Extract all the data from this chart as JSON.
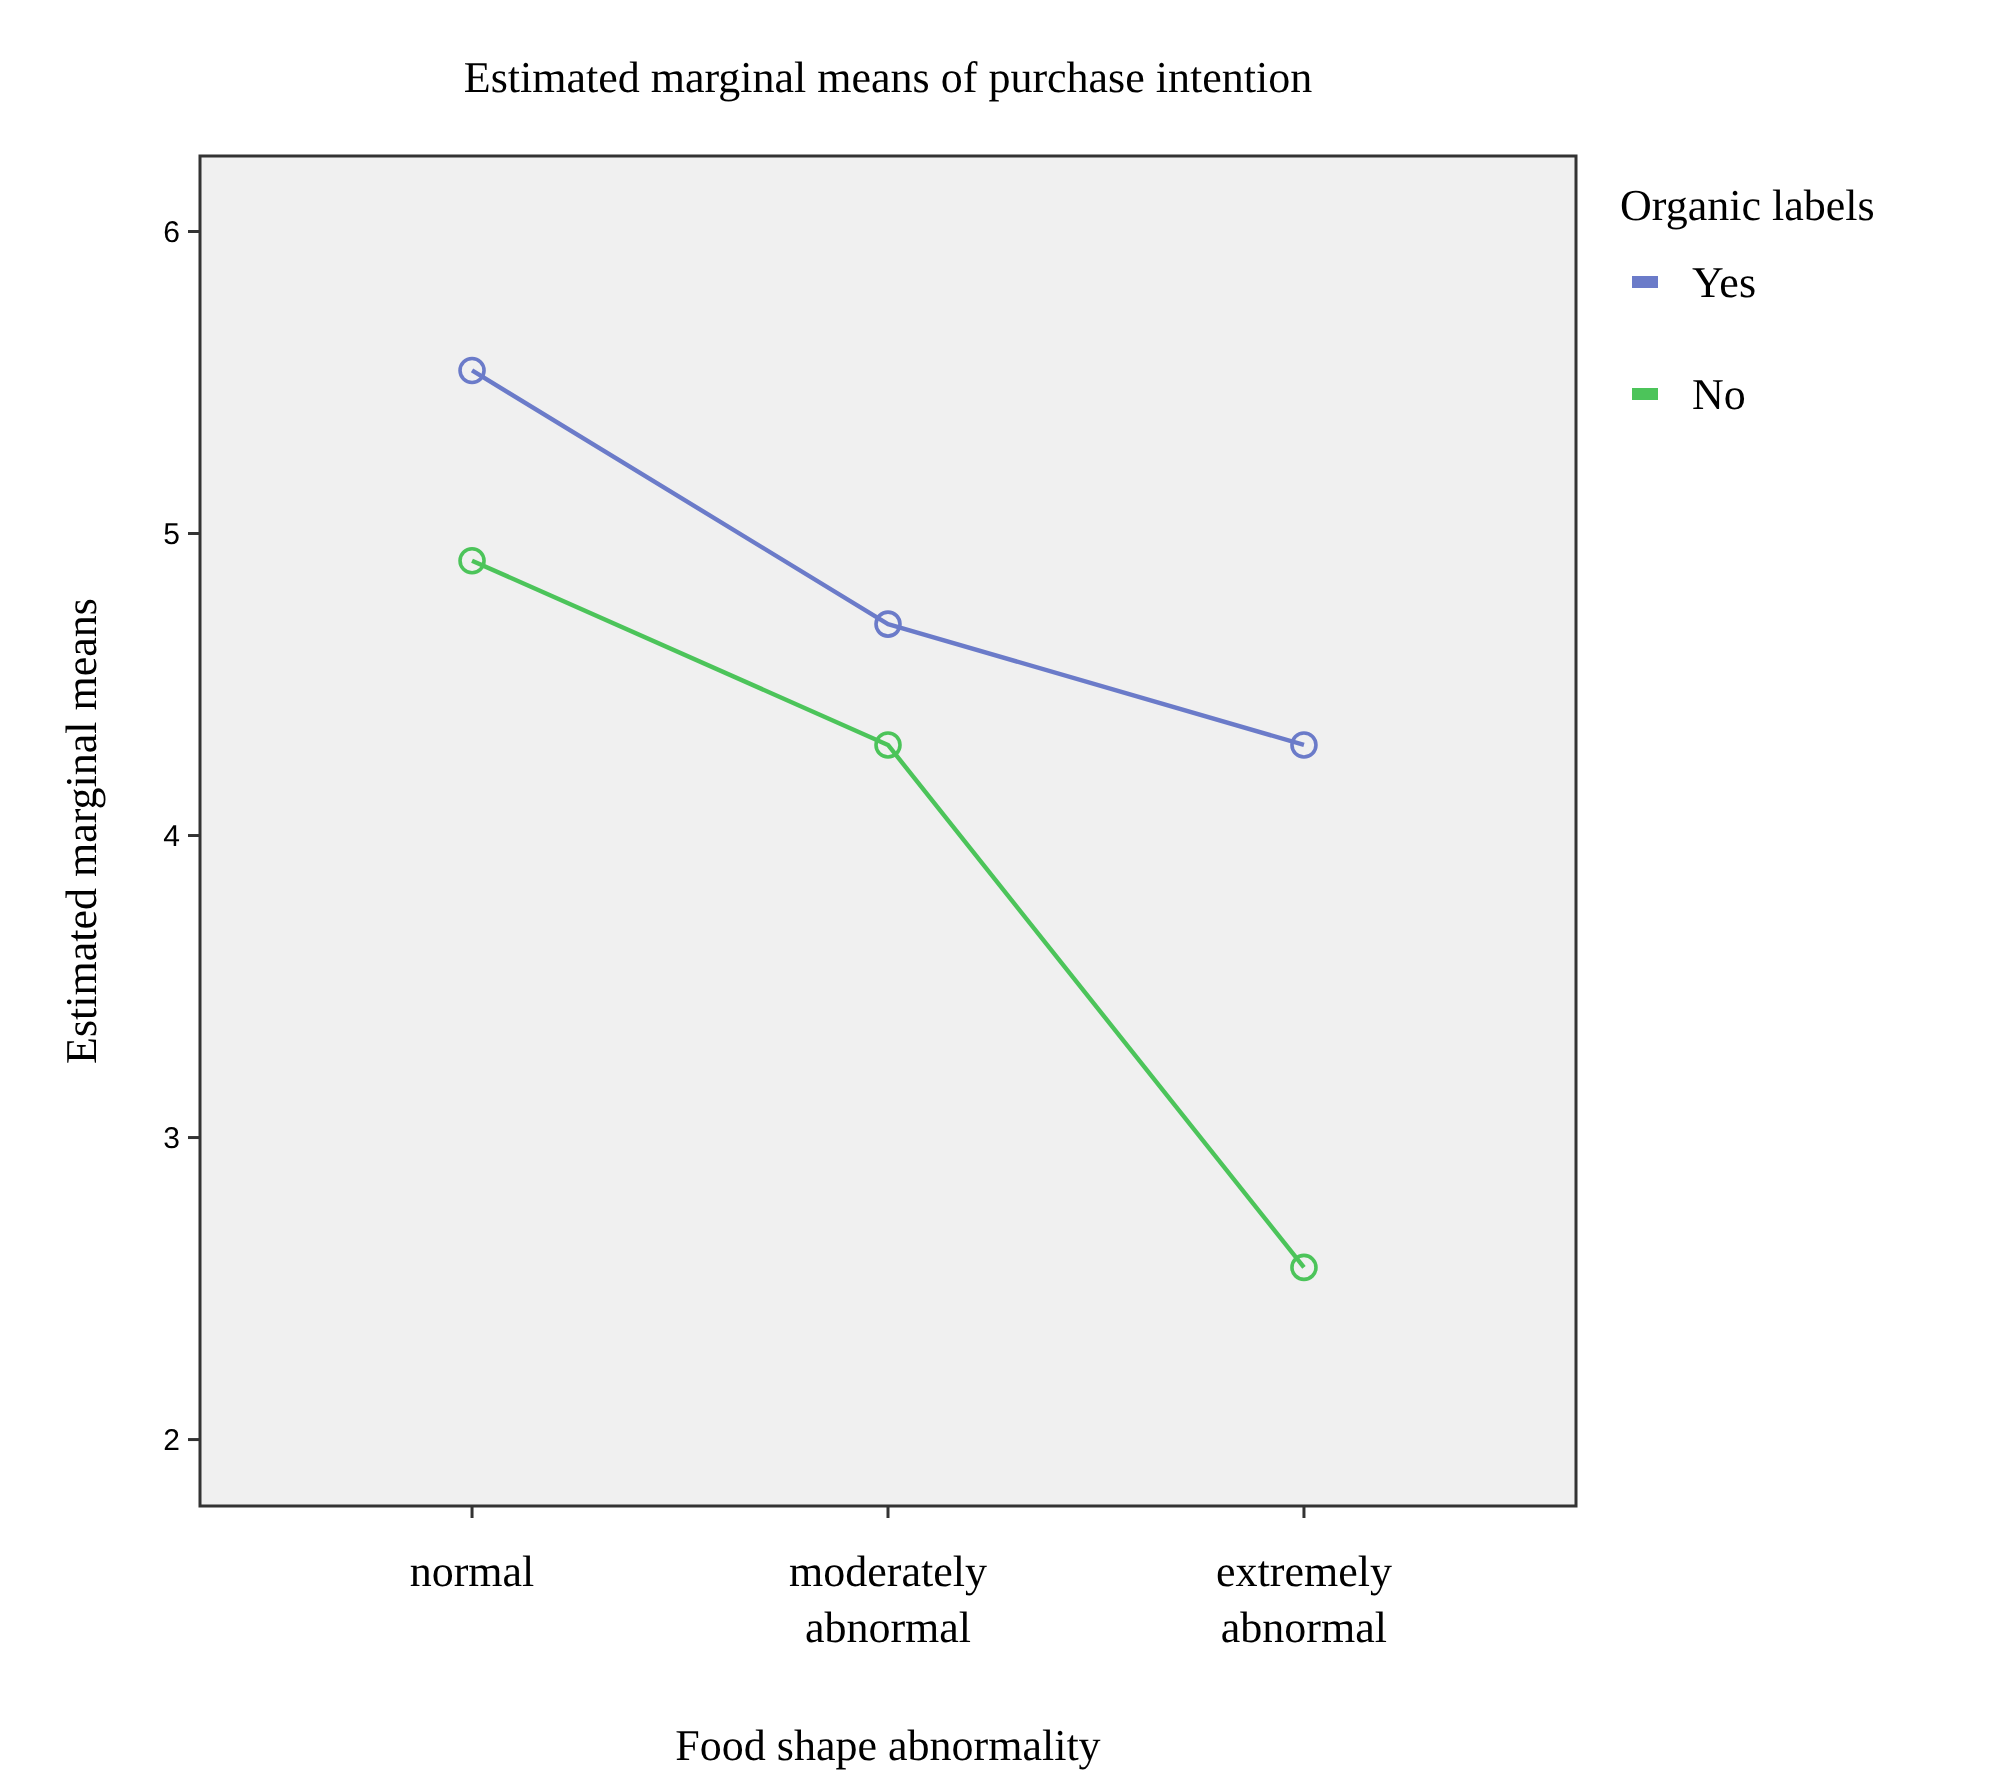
{
  "chart_data": {
    "type": "line",
    "title": "Estimated marginal means of purchase intention",
    "xlabel": "Food shape abnormality",
    "ylabel": "Estimated marginal means",
    "legend_title": "Organic labels",
    "categories": [
      "normal",
      "moderately abnormal",
      "extremely abnormal"
    ],
    "series": [
      {
        "name": "Yes",
        "color": "#6b7bc9",
        "values": [
          5.54,
          4.7,
          4.3
        ]
      },
      {
        "name": "No",
        "color": "#4cc45a",
        "values": [
          4.91,
          4.3,
          2.57
        ]
      }
    ],
    "ylim": [
      1.78,
      6.25
    ],
    "yticks": [
      2,
      3,
      4,
      5,
      6
    ],
    "grid": false,
    "legend": "right",
    "marker": "circle",
    "line_style": "solid"
  }
}
